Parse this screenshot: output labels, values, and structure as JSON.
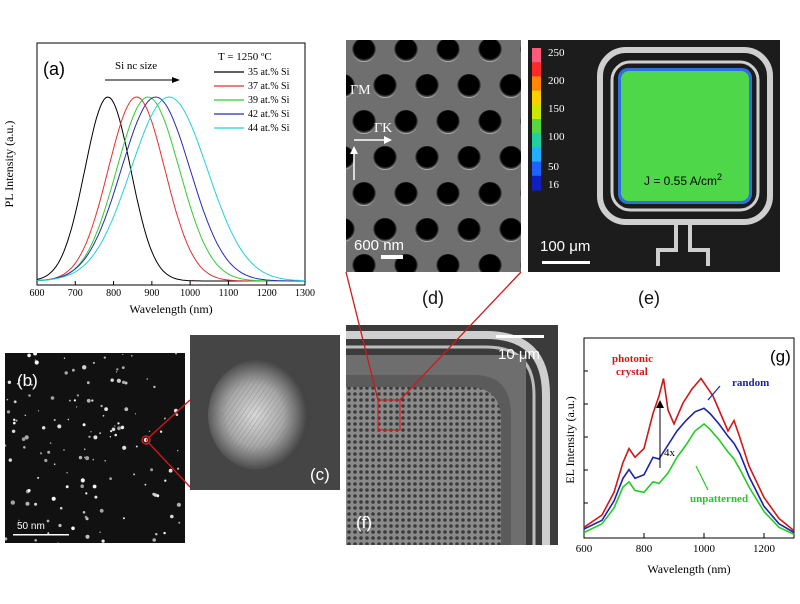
{
  "chart_data": [
    {
      "type": "line",
      "panel": "(a)",
      "title": "",
      "xlabel": "Wavelength (nm)",
      "ylabel": "PL Intensity (a.u.)",
      "xlim": [
        600,
        1300
      ],
      "xticks": [
        "600",
        "700",
        "800",
        "900",
        "1000",
        "1100",
        "1200",
        "1300"
      ],
      "legend_title": "T = 1250 ºC",
      "annotation": "Si nc size",
      "legend_position": "top-right",
      "series": [
        {
          "name": "35 at.% Si",
          "color": "#000000",
          "peak": 785,
          "sigma": 60,
          "amplitude": 1.0
        },
        {
          "name": "37 at.% Si",
          "color": "#e03030",
          "peak": 860,
          "sigma": 74,
          "amplitude": 1.0
        },
        {
          "name": "39 at.% Si",
          "color": "#33cc33",
          "peak": 890,
          "sigma": 82,
          "amplitude": 1.0
        },
        {
          "name": "42 at.% Si",
          "color": "#2a2ab0",
          "peak": 910,
          "sigma": 90,
          "amplitude": 1.0
        },
        {
          "name": "44 at.% Si",
          "color": "#22d0d8",
          "peak": 945,
          "sigma": 100,
          "amplitude": 1.0
        }
      ]
    },
    {
      "type": "line",
      "panel": "(g)",
      "title": "",
      "xlabel": "Wavelength (nm)",
      "ylabel": "EL Intensity (a.u.)",
      "xlim": [
        600,
        1300
      ],
      "ylim": [
        0,
        1
      ],
      "xticks": [
        "600",
        "800",
        "1000",
        "1200"
      ],
      "annotation": "4x",
      "series": [
        {
          "name": "photonic crystal",
          "color": "#d01818",
          "x": [
            600,
            660,
            700,
            730,
            750,
            770,
            800,
            830,
            850,
            865,
            880,
            900,
            930,
            960,
            990,
            1010,
            1030,
            1060,
            1080,
            1100,
            1120,
            1150,
            1200,
            1250,
            1300
          ],
          "y": [
            0.05,
            0.12,
            0.25,
            0.42,
            0.5,
            0.45,
            0.5,
            0.7,
            0.8,
            0.9,
            0.72,
            0.64,
            0.76,
            0.84,
            0.9,
            0.85,
            0.8,
            0.68,
            0.6,
            0.66,
            0.56,
            0.4,
            0.22,
            0.1,
            0.03
          ]
        },
        {
          "name": "random",
          "color": "#1a22b0",
          "x": [
            600,
            660,
            700,
            730,
            750,
            770,
            800,
            830,
            850,
            880,
            910,
            940,
            970,
            1000,
            1020,
            1050,
            1080,
            1100,
            1120,
            1150,
            1200,
            1250,
            1300
          ],
          "y": [
            0.04,
            0.09,
            0.2,
            0.33,
            0.38,
            0.33,
            0.35,
            0.45,
            0.44,
            0.52,
            0.6,
            0.66,
            0.71,
            0.73,
            0.7,
            0.64,
            0.57,
            0.53,
            0.47,
            0.34,
            0.17,
            0.07,
            0.02
          ]
        },
        {
          "name": "unpatterned",
          "color": "#22cc22",
          "x": [
            600,
            660,
            700,
            730,
            750,
            770,
            800,
            830,
            850,
            880,
            910,
            940,
            970,
            1000,
            1020,
            1050,
            1080,
            1100,
            1120,
            1150,
            1200,
            1250,
            1300
          ],
          "y": [
            0.02,
            0.07,
            0.16,
            0.28,
            0.31,
            0.26,
            0.25,
            0.31,
            0.3,
            0.36,
            0.45,
            0.52,
            0.6,
            0.64,
            0.61,
            0.55,
            0.48,
            0.44,
            0.38,
            0.28,
            0.14,
            0.05,
            0.01
          ]
        }
      ]
    }
  ],
  "figure": {
    "panel_labels": {
      "a": "(a)",
      "b": "(b)",
      "c": "(c)",
      "d": "(d)",
      "e": "(e)",
      "f": "(f)",
      "g": "(g)"
    },
    "scalebars": {
      "b": "50 nm",
      "d": "600 nm",
      "e": "100 μm",
      "f": "10 μm"
    },
    "d_directions": {
      "gm": "ΓM",
      "gk": "ΓK"
    },
    "e_colorbar": {
      "ticks": [
        "250",
        "200",
        "150",
        "100",
        "50",
        "16"
      ],
      "current_density_label": "J = 0.55 A/cm",
      "current_density_exponent": "2"
    },
    "g_labels": {
      "photonic": [
        "photonic",
        "crystal"
      ],
      "random": "random",
      "unpatterned": "unpatterned"
    }
  }
}
